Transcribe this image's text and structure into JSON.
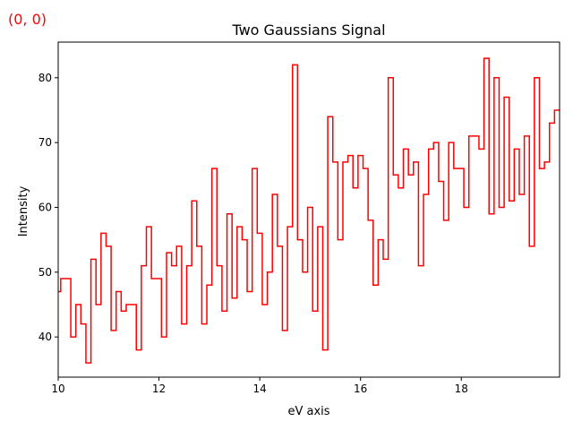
{
  "corner_label": "(0, 0)",
  "chart_data": {
    "type": "line",
    "style": "step-mid",
    "title": "Two Gaussians Signal",
    "xlabel": "eV axis",
    "ylabel": "Intensity",
    "xlim": [
      10,
      19.95
    ],
    "ylim": [
      33.8,
      85.5
    ],
    "xticks": [
      10,
      12,
      14,
      16,
      18
    ],
    "yticks": [
      40,
      50,
      60,
      70,
      80
    ],
    "grid": false,
    "color": "#ff0000",
    "x_start": 10,
    "x_step": 0.1,
    "values": [
      47,
      49,
      49,
      40,
      45,
      42,
      36,
      52,
      45,
      56,
      54,
      41,
      47,
      44,
      45,
      45,
      38,
      51,
      57,
      49,
      49,
      40,
      53,
      51,
      54,
      42,
      51,
      61,
      54,
      42,
      48,
      66,
      51,
      44,
      59,
      46,
      57,
      55,
      47,
      66,
      56,
      45,
      50,
      62,
      54,
      41,
      57,
      82,
      55,
      50,
      60,
      44,
      57,
      38,
      74,
      67,
      55,
      67,
      68,
      63,
      68,
      66,
      58,
      48,
      55,
      52,
      80,
      65,
      63,
      69,
      65,
      67,
      51,
      62,
      69,
      70,
      64,
      58,
      70,
      66,
      66,
      60,
      71,
      71,
      69,
      83,
      59,
      80,
      60,
      77,
      61,
      69,
      62,
      71,
      54,
      80,
      66,
      67,
      73,
      75
    ]
  }
}
